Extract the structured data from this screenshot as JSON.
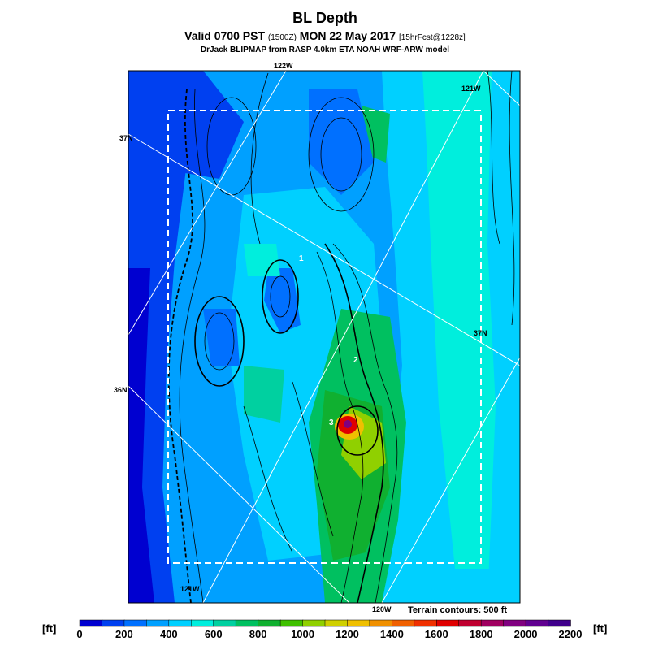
{
  "title": "BL Depth",
  "subtitle": {
    "main_a": "Valid 0700 PST ",
    "zulu": "(1500Z)",
    "main_b": " MON 22 May 2017 ",
    "forecast": "[15hrFcst@1228z]"
  },
  "source": "DrJack BLIPMAP from RASP 4.0km ETA NOAH WRF-ARW model",
  "grid_labels": {
    "lon_122_top": "122W",
    "lon_121_top": "121W",
    "lon_121_bottom": "121W",
    "lon_120_bottom": "120W",
    "lat_37_left": "37N",
    "lat_37_right": "37N",
    "lat_36_left": "36N"
  },
  "point_labels": [
    "1",
    "2",
    "3"
  ],
  "terrain_note": "Terrain contours: 500 ft",
  "colorbar": {
    "unit": "[ft]",
    "ticks": [
      "0",
      "200",
      "400",
      "600",
      "800",
      "1000",
      "1200",
      "1400",
      "1600",
      "1800",
      "2000",
      "2200"
    ],
    "colors": [
      "#0000d0",
      "#0040f0",
      "#0070ff",
      "#00a0ff",
      "#00d0ff",
      "#00eedd",
      "#00d0a0",
      "#00c060",
      "#10b030",
      "#40c000",
      "#90d000",
      "#d0d000",
      "#f0c000",
      "#f09000",
      "#f06000",
      "#f03000",
      "#e00000",
      "#c00030",
      "#a00060",
      "#800080",
      "#600090",
      "#40008c"
    ]
  },
  "colors": {
    "mid_blue": "#0070ff",
    "light_blue": "#00a0ff",
    "cyan": "#00d0ff",
    "aqua": "#00eedd",
    "dark_blue": "#0040f0",
    "deep_blue": "#0000d0",
    "green": "#00c060",
    "yellow_green": "#90d000",
    "red": "#e00000",
    "purple": "#800080"
  }
}
